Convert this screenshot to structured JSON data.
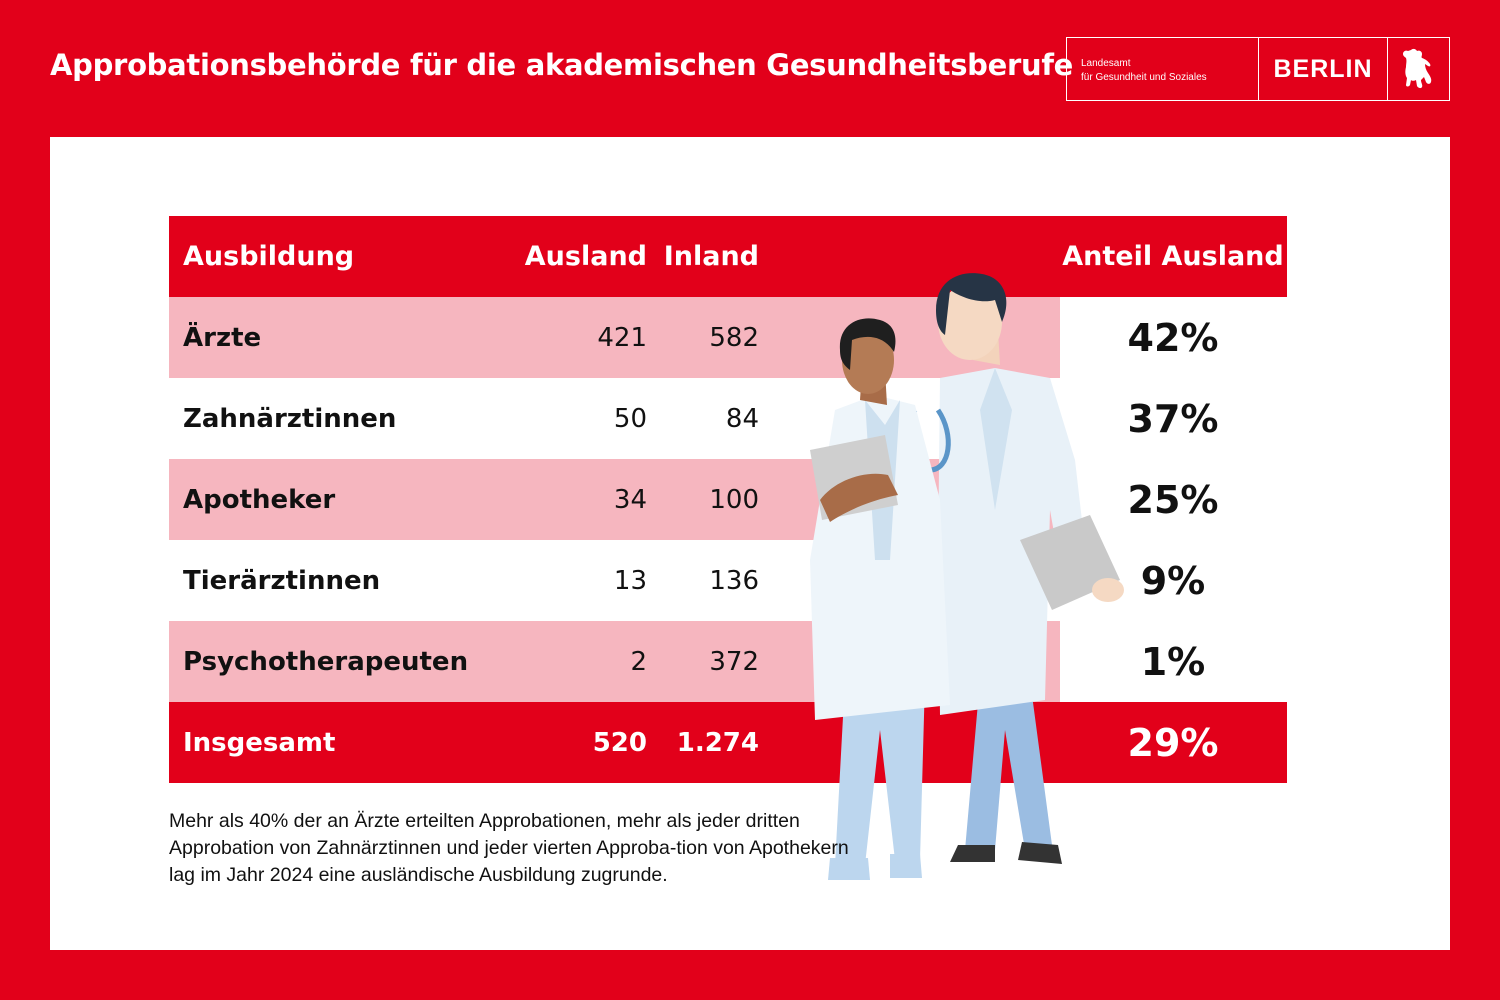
{
  "header": {
    "title": "Approbationsbehörde für die akademischen Gesundheitsberufe",
    "logo_line1": "Landesamt",
    "logo_line2": "für Gesundheit und Soziales",
    "logo_city": "BERLIN",
    "logo_icon": "berlin-bear-icon"
  },
  "colors": {
    "brand_red": "#e2001a",
    "band_pink": "#f6b6bf"
  },
  "chart_data": {
    "type": "table",
    "columns": [
      "Ausbildung",
      "Ausland",
      "Inland",
      "Anteil Ausland"
    ],
    "rows": [
      {
        "name": "Ärzte",
        "abroad": "421",
        "domestic": "582",
        "share": "42%"
      },
      {
        "name": "Zahnärztinnen",
        "abroad": "50",
        "domestic": "84",
        "share": "37%"
      },
      {
        "name": "Apotheker",
        "abroad": "34",
        "domestic": "100",
        "share": "25%"
      },
      {
        "name": "Tierärztinnen",
        "abroad": "13",
        "domestic": "136",
        "share": "9%"
      },
      {
        "name": "Psychotherapeuten",
        "abroad": "2",
        "domestic": "372",
        "share": "1%"
      }
    ],
    "total": {
      "name": "Insgesamt",
      "abroad": "520",
      "domestic": "1.274",
      "share": "29%"
    },
    "note": "Mehr als 40% der an Ärzte erteilten Approbationen, mehr als jeder dritten Approbation von Zahnärztinnen und jeder vierten Approba-tion von Apothekern lag im Jahr 2024 eine ausländische Ausbildung zugrunde."
  },
  "illustration": {
    "icon": "two-doctors-illustration"
  }
}
